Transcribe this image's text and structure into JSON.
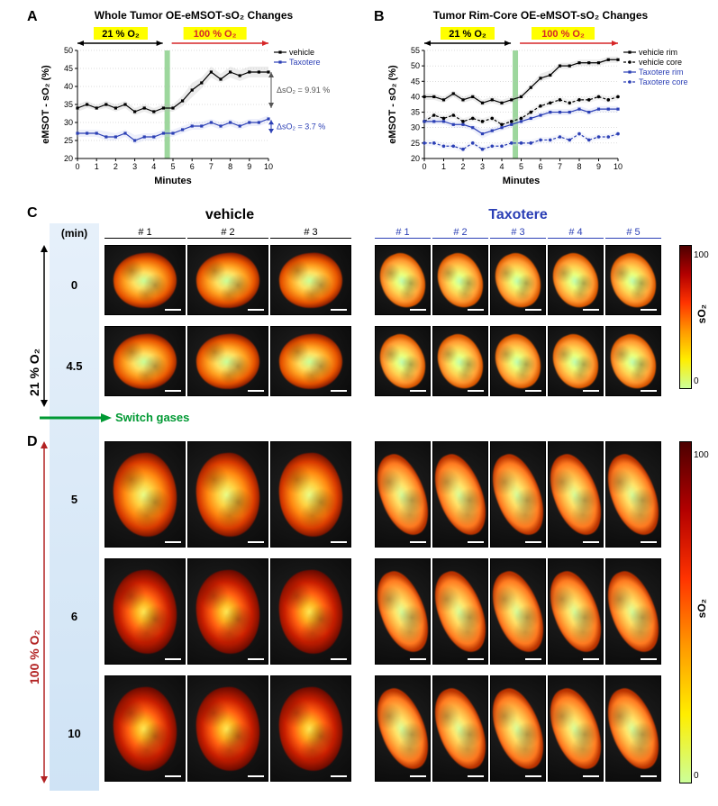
{
  "panelA": {
    "label": "A",
    "title": "Whole Tumor OE-eMSOT-sO₂ Changes",
    "cond1": {
      "text": "21 % O₂",
      "bg": "#ffff00",
      "color": "#000000"
    },
    "cond2": {
      "text": "100 % O₂",
      "bg": "#ffff00",
      "color": "#d62728"
    },
    "ylabel": "eMSOT - sO₂ (%)",
    "xlabel": "Minutes",
    "ylim": [
      20,
      50
    ],
    "ytick_step": 5,
    "xlim": [
      0,
      10
    ],
    "xtick_step": 1,
    "green_bar_x": 4.7,
    "green_bar_color": "#9dd79d",
    "grid_color": "#cccccc",
    "series": [
      {
        "name": "vehicle",
        "color": "#000000",
        "dash": "",
        "marker": "square",
        "x": [
          0,
          0.5,
          1,
          1.5,
          2,
          2.5,
          3,
          3.5,
          4,
          4.5,
          5,
          5.5,
          6,
          6.5,
          7,
          7.5,
          8,
          8.5,
          9,
          9.5,
          10
        ],
        "y": [
          34,
          35,
          34,
          35,
          34,
          35,
          33,
          34,
          33,
          34,
          34,
          36,
          39,
          41,
          44,
          42,
          44,
          43,
          44,
          44,
          44
        ],
        "band_lo": [
          33,
          34,
          33.5,
          34,
          33,
          34,
          32,
          33,
          32,
          33,
          33,
          34.5,
          37,
          39.5,
          42.5,
          41,
          42.5,
          41.5,
          42.5,
          42.5,
          42.5
        ],
        "band_hi": [
          35,
          36,
          34.8,
          36,
          35,
          36,
          34,
          35,
          34,
          35,
          35,
          37.5,
          41,
          42.5,
          45.5,
          43.5,
          45.5,
          44.5,
          45.5,
          45.5,
          45.5
        ],
        "band_color": "#bbbbbb"
      },
      {
        "name": "Taxotere",
        "color": "#2b3fb5",
        "dash": "",
        "marker": "square",
        "x": [
          0,
          0.5,
          1,
          1.5,
          2,
          2.5,
          3,
          3.5,
          4,
          4.5,
          5,
          5.5,
          6,
          6.5,
          7,
          7.5,
          8,
          8.5,
          9,
          9.5,
          10
        ],
        "y": [
          27,
          27,
          27,
          26,
          26,
          27,
          25,
          26,
          26,
          27,
          27,
          28,
          29,
          29,
          30,
          29,
          30,
          29,
          30,
          30,
          31
        ],
        "band_lo": [
          26,
          26,
          26,
          25,
          25,
          26,
          24,
          25,
          25,
          26,
          26,
          27,
          28,
          28,
          29,
          28,
          29,
          28,
          29,
          29,
          30
        ],
        "band_hi": [
          28,
          28,
          28,
          27.5,
          27,
          28,
          26.5,
          27,
          27,
          28,
          28,
          29,
          30,
          30.2,
          31,
          30,
          31,
          30,
          31,
          31,
          32
        ],
        "band_color": "#c1c9ef"
      }
    ],
    "delta_vehicle": {
      "text": "ΔsO₂ = 9.91 %",
      "color": "#555555"
    },
    "delta_taxotere": {
      "text": "ΔsO₂ = 3.7 %",
      "color": "#2b3fb5"
    },
    "legend": [
      "vehicle",
      "Taxotere"
    ]
  },
  "panelB": {
    "label": "B",
    "title": "Tumor Rim-Core OE-eMSOT-sO₂ Changes",
    "cond1": {
      "text": "21 % O₂",
      "bg": "#ffff00",
      "color": "#000000"
    },
    "cond2": {
      "text": "100 % O₂",
      "bg": "#ffff00",
      "color": "#d62728"
    },
    "ylabel": "eMSOT - sO₂ (%)",
    "xlabel": "Minutes",
    "ylim": [
      20,
      55
    ],
    "ytick_step": 5,
    "xlim": [
      0,
      10
    ],
    "xtick_step": 1,
    "green_bar_x": 4.7,
    "green_bar_color": "#9dd79d",
    "grid_color": "#cccccc",
    "series": [
      {
        "name": "vehicle rim",
        "color": "#000000",
        "dash": "",
        "marker": "square",
        "x": [
          0,
          0.5,
          1,
          1.5,
          2,
          2.5,
          3,
          3.5,
          4,
          4.5,
          5,
          5.5,
          6,
          6.5,
          7,
          7.5,
          8,
          8.5,
          9,
          9.5,
          10
        ],
        "y": [
          40,
          40,
          39,
          41,
          39,
          40,
          38,
          39,
          38,
          39,
          40,
          43,
          46,
          47,
          50,
          50,
          51,
          51,
          51,
          52,
          52
        ],
        "band_lo": [
          39,
          39,
          38,
          40,
          38,
          39,
          37,
          38,
          37,
          38,
          39,
          42,
          45,
          46,
          49,
          49,
          50,
          50,
          50,
          51,
          51
        ],
        "band_hi": [
          41,
          41,
          40,
          42,
          40,
          41,
          39,
          40,
          39,
          40,
          41,
          44,
          47.5,
          48.5,
          51,
          51,
          52,
          52,
          52,
          53,
          53
        ],
        "band_color": "#bbbbbb"
      },
      {
        "name": "vehicle core",
        "color": "#000000",
        "dash": "3 2",
        "marker": "circle",
        "x": [
          0,
          0.5,
          1,
          1.5,
          2,
          2.5,
          3,
          3.5,
          4,
          4.5,
          5,
          5.5,
          6,
          6.5,
          7,
          7.5,
          8,
          8.5,
          9,
          9.5,
          10
        ],
        "y": [
          32,
          34,
          33,
          34,
          32,
          33,
          32,
          33,
          31,
          32,
          33,
          35,
          37,
          38,
          39,
          38,
          39,
          39,
          40,
          39,
          40
        ],
        "band_lo": [
          31,
          33,
          32,
          33,
          31,
          32,
          31,
          32,
          30,
          31,
          32,
          34,
          36,
          37,
          38,
          37,
          38,
          38,
          39,
          38,
          39
        ],
        "band_hi": [
          33,
          35,
          34,
          35,
          33,
          34,
          33,
          34,
          32,
          33,
          34,
          36,
          38,
          39,
          40,
          39,
          40,
          40,
          41,
          40,
          41
        ],
        "band_color": "#d5d5d5"
      },
      {
        "name": "Taxotere rim",
        "color": "#2b3fb5",
        "dash": "",
        "marker": "square",
        "x": [
          0,
          0.5,
          1,
          1.5,
          2,
          2.5,
          3,
          3.5,
          4,
          4.5,
          5,
          5.5,
          6,
          6.5,
          7,
          7.5,
          8,
          8.5,
          9,
          9.5,
          10
        ],
        "y": [
          32,
          32,
          32,
          31,
          31,
          30,
          28,
          29,
          30,
          31,
          32,
          33,
          34,
          35,
          35,
          35,
          36,
          35,
          36,
          36,
          36
        ],
        "band_lo": [
          31,
          31,
          31,
          30,
          30,
          29,
          26.5,
          28,
          29,
          30,
          31,
          32,
          33,
          34,
          34,
          34,
          35,
          34,
          35,
          35,
          35
        ],
        "band_hi": [
          33,
          33,
          33,
          32,
          32,
          31,
          29.5,
          30,
          31,
          32,
          33,
          34,
          35,
          36,
          36,
          36,
          37,
          36,
          37,
          37,
          37
        ],
        "band_color": "#c1c9ef"
      },
      {
        "name": "Taxotere core",
        "color": "#2b3fb5",
        "dash": "3 2",
        "marker": "circle",
        "x": [
          0,
          0.5,
          1,
          1.5,
          2,
          2.5,
          3,
          3.5,
          4,
          4.5,
          5,
          5.5,
          6,
          6.5,
          7,
          7.5,
          8,
          8.5,
          9,
          9.5,
          10
        ],
        "y": [
          25,
          25,
          24,
          24,
          23,
          25,
          23,
          24,
          24,
          25,
          25,
          25,
          26,
          26,
          27,
          26,
          28,
          26,
          27,
          27,
          28
        ],
        "band_lo": [
          24,
          24,
          23,
          23,
          22,
          24,
          22,
          23,
          23,
          24,
          24,
          24,
          25,
          25,
          26,
          25,
          27,
          25,
          26,
          26,
          27
        ],
        "band_hi": [
          26,
          26,
          25,
          25,
          24,
          26,
          24,
          25,
          25,
          26,
          26,
          26,
          27,
          27,
          28,
          27,
          29,
          27,
          28,
          28,
          29
        ],
        "band_color": "#dbe0f6"
      }
    ],
    "legend": [
      "vehicle rim",
      "vehicle core",
      "Taxotere rim",
      "Taxotere core"
    ]
  },
  "panelCD": {
    "labelC": "C",
    "labelD": "D",
    "vehicle_header": "vehicle",
    "taxotere_header": "Taxotere",
    "taxotere_color": "#2b3fb5",
    "vehicle_cols": [
      "# 1",
      "# 2",
      "# 3"
    ],
    "taxotere_cols": [
      "# 1",
      "# 2",
      "# 3",
      "# 4",
      "# 5"
    ],
    "min_header": "(min)",
    "rowsC": [
      {
        "t": "0"
      },
      {
        "t": "4.5"
      }
    ],
    "rowsD": [
      {
        "t": "5"
      },
      {
        "t": "6"
      },
      {
        "t": "10"
      }
    ],
    "switch_text": "Switch gases",
    "switch_color": "#009933",
    "rot_21": "21 % O₂",
    "rot_100": "100 % O₂",
    "rot_100_color": "#b22222",
    "colorbar": {
      "min": "0",
      "max": "100",
      "label": "sO₂",
      "stops": [
        "#4d0000",
        "#b30000",
        "#ff3300",
        "#ff9900",
        "#ffee00",
        "#ccff99"
      ]
    },
    "cell": {
      "veh_w": 90,
      "veh_h": 78,
      "tax_w": 62,
      "tax_h": 78,
      "gap": 2
    }
  },
  "colors": {
    "vehicle_hot": "radial-gradient(ellipse 55% 50% at 48% 50%, #ffea55 0%, #ffb020 22%, #ff5e10 46%, #c81e00 72%, #6b0a00 100%)",
    "vehicle_warm": "radial-gradient(ellipse 55% 50% at 48% 50%, #eaff88 0%, #ffd040 28%, #ff8810 55%, #d83a00 80%, #7b1400 100%)",
    "vehicle_base": "radial-gradient(ellipse 55% 50% at 48% 50%, #c8ff9a 0%, #ffe060 30%, #ffa020 55%, #e85500 80%, #8c1c00 100%)",
    "taxotere_hot": "radial-gradient(ellipse 52% 48% at 48% 50%, #d8ff9a 0%, #ffe46a 30%, #ffb040 58%, #ff7a20 82%, #b83200 100%)",
    "taxotere_base": "radial-gradient(ellipse 52% 48% at 48% 50%, #c0ffb0 0%, #ecff7a 26%, #ffd050 55%, #ff9830 80%, #d85500 100%)"
  }
}
